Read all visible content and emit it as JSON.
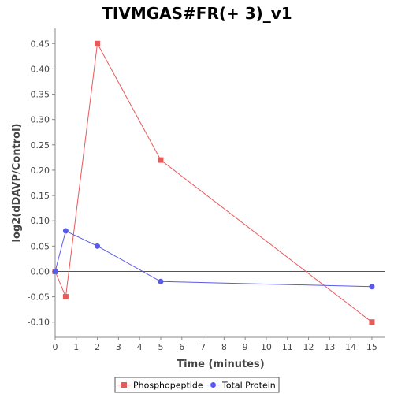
{
  "chart_data": {
    "type": "line",
    "title": "TIVMGAS#FR(+ 3)_v1",
    "xlabel": "Time (minutes)",
    "ylabel": "log2(dDAVP/Control)",
    "xlim": [
      0,
      15.6
    ],
    "ylim": [
      -0.13,
      0.48
    ],
    "x_ticks": [
      0,
      1,
      2,
      3,
      4,
      5,
      6,
      7,
      8,
      9,
      10,
      11,
      12,
      13,
      14,
      15
    ],
    "y_ticks": [
      -0.1,
      -0.05,
      0.0,
      0.05,
      0.1,
      0.15,
      0.2,
      0.25,
      0.3,
      0.35,
      0.4,
      0.45
    ],
    "grid": false,
    "zero_line": true,
    "legend_position": "bottom",
    "series": [
      {
        "name": "Phosphopeptide",
        "color": "#e8595a",
        "marker": "square",
        "x": [
          0,
          0.5,
          2,
          5,
          15
        ],
        "y": [
          0.0,
          -0.05,
          0.45,
          0.22,
          -0.1
        ]
      },
      {
        "name": "Total Protein",
        "color": "#5a5ae8",
        "marker": "circle",
        "x": [
          0,
          0.5,
          2,
          5,
          15
        ],
        "y": [
          0.0,
          0.08,
          0.05,
          -0.02,
          -0.03
        ]
      }
    ]
  }
}
